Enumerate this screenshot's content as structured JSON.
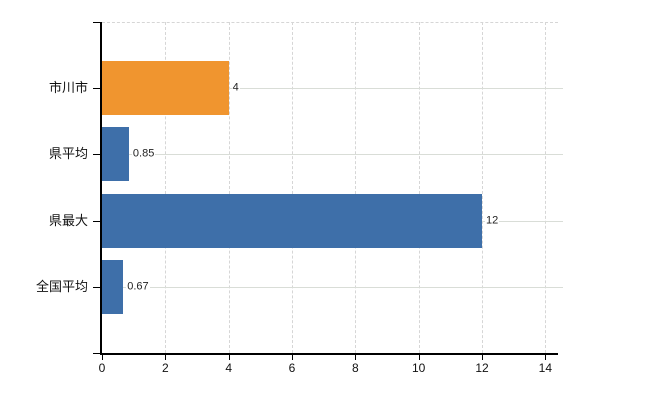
{
  "chart_data": {
    "type": "bar",
    "orientation": "horizontal",
    "title": "",
    "xlabel": "",
    "ylabel": "",
    "categories": [
      "市川市",
      "県平均",
      "県最大",
      "全国平均"
    ],
    "values": [
      4,
      0.85,
      12,
      0.67
    ],
    "value_labels": [
      "4",
      "0.85",
      "12",
      "0.67"
    ],
    "bar_colors": [
      "#f0952f",
      "#3e6fa9",
      "#3e6fa9",
      "#3e6fa9"
    ],
    "x_ticks": [
      0,
      2,
      4,
      6,
      8,
      10,
      12,
      14
    ],
    "x_tick_labels": [
      "0",
      "2",
      "4",
      "6",
      "8",
      "10",
      "12",
      "14"
    ],
    "xlim": [
      0,
      14.4
    ],
    "grid": true,
    "grid_style": "dashed-vertical-solid-horizontal",
    "legend": "none",
    "colors": {
      "background": "#ffffff",
      "axis": "#000000",
      "gridline": "#d9d9d9",
      "bar_orange": "#f0952f",
      "bar_blue": "#3e6fa9",
      "label_text": "#111111",
      "value_text": "#222222"
    }
  }
}
